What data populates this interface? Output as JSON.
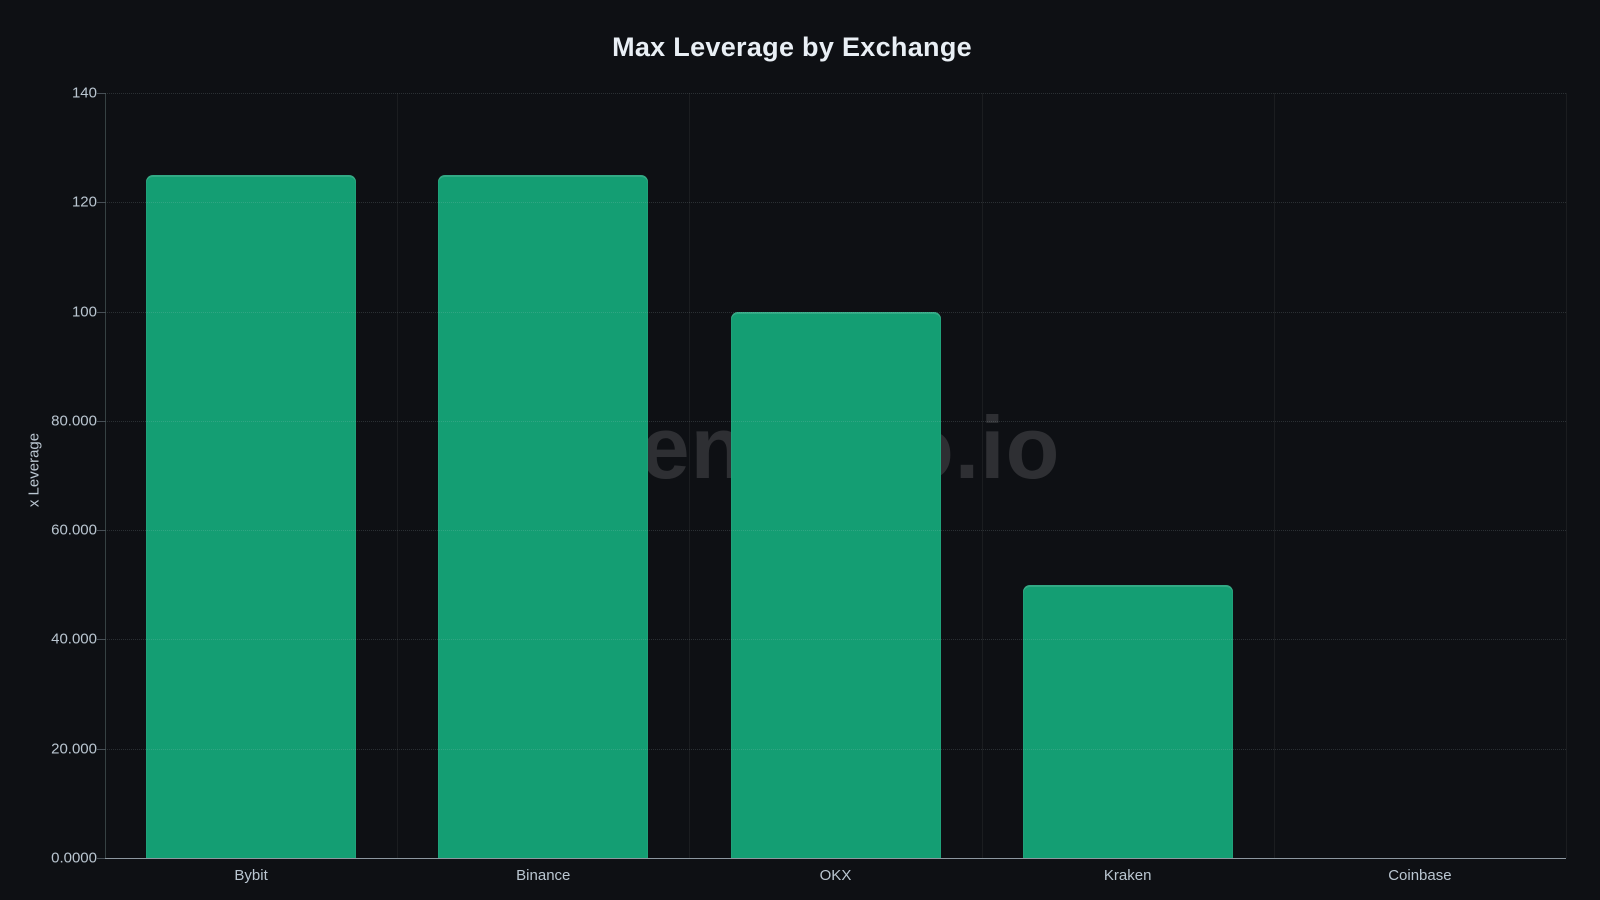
{
  "chart_data": {
    "type": "bar",
    "title": "Max Leverage by Exchange",
    "categories": [
      "Bybit",
      "Binance",
      "OKX",
      "Kraken",
      "Coinbase"
    ],
    "values": [
      125,
      125,
      100,
      50,
      0
    ],
    "xlabel": "",
    "ylabel": "x Leverage",
    "ylim": [
      0,
      140
    ],
    "ytick_values": [
      0,
      20,
      40,
      60,
      80,
      100,
      120,
      140
    ],
    "ytick_labels": [
      "0.0000",
      "20.000",
      "40.000",
      "60.000",
      "80.000",
      "100",
      "120",
      "140"
    ],
    "grid": true,
    "legend": null,
    "watermark": "tokenecho.io",
    "colors": {
      "background": "#0e1014",
      "bar": "#149e73",
      "title_text": "#e9eff5",
      "tick_text": "#bac6d1",
      "x_axis_line": "#8d97a0",
      "y_axis_line": "rgba(150,178,180,0.30)",
      "gridline_v": "rgba(255,255,255,0.055)",
      "gridline_h": "rgba(190,205,215,0.17)",
      "watermark_text": "rgba(255,255,255,0.135)"
    }
  }
}
